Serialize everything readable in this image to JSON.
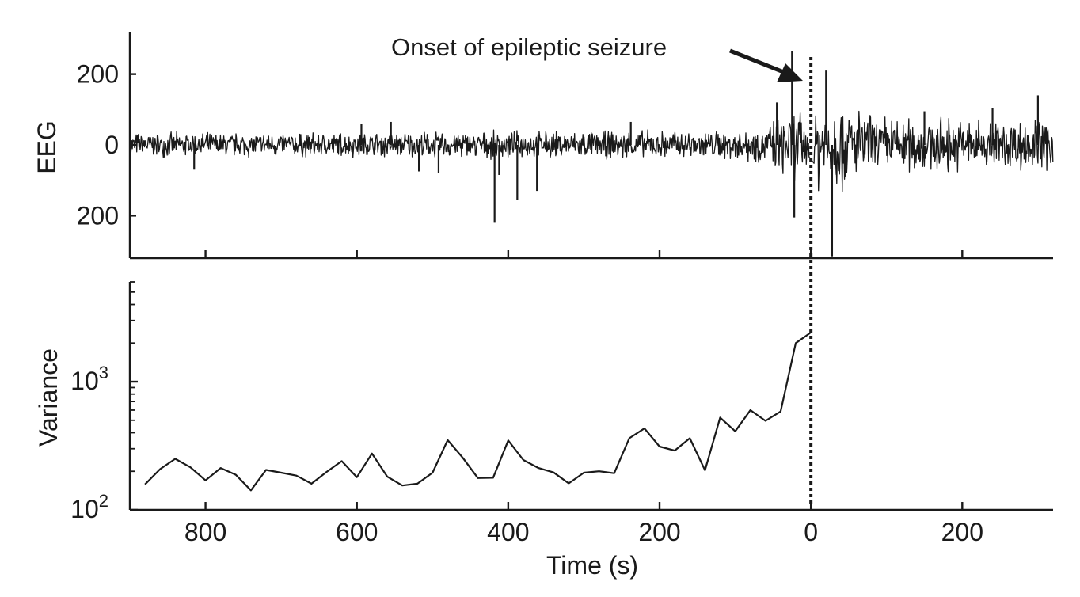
{
  "annotation": "Onset of epileptic seizure",
  "xlabel": "Time (s)",
  "chart_data": [
    {
      "type": "line",
      "ylabel": "EEG",
      "xlim": [
        -900,
        320
      ],
      "ylim": [
        -320,
        320
      ],
      "yticks": [
        {
          "value": 200,
          "label": "200"
        },
        {
          "value": 0,
          "label": "0"
        },
        {
          "value": -200,
          "label": "200"
        }
      ],
      "series_note_free": true,
      "spikes": [
        {
          "x": -815,
          "y": -70
        },
        {
          "x": -594,
          "y": 60
        },
        {
          "x": -555,
          "y": 65
        },
        {
          "x": -518,
          "y": -75
        },
        {
          "x": -492,
          "y": -80
        },
        {
          "x": -418,
          "y": -220
        },
        {
          "x": -412,
          "y": -85
        },
        {
          "x": -388,
          "y": -155
        },
        {
          "x": -362,
          "y": -130
        },
        {
          "x": -238,
          "y": 65
        },
        {
          "x": -45,
          "y": 120
        },
        {
          "x": -25,
          "y": 265
        },
        {
          "x": -22,
          "y": -205
        },
        {
          "x": 28,
          "y": -315
        },
        {
          "x": 20,
          "y": 210
        },
        {
          "x": 150,
          "y": 95
        },
        {
          "x": 240,
          "y": 105
        },
        {
          "x": 300,
          "y": 140
        }
      ],
      "envelope": [
        {
          "x": -900,
          "amp": 38
        },
        {
          "x": -600,
          "amp": 40
        },
        {
          "x": -300,
          "amp": 44
        },
        {
          "x": -120,
          "amp": 48
        },
        {
          "x": -60,
          "amp": 60
        },
        {
          "x": -35,
          "amp": 100
        },
        {
          "x": -15,
          "amp": 110
        },
        {
          "x": 0,
          "amp": 60
        },
        {
          "x": 10,
          "amp": 150
        },
        {
          "x": 35,
          "amp": 150
        },
        {
          "x": 80,
          "amp": 95
        },
        {
          "x": 200,
          "amp": 85
        },
        {
          "x": 320,
          "amp": 85
        }
      ]
    },
    {
      "type": "line",
      "ylabel": "Variance",
      "yscale": "log",
      "xlim": [
        -900,
        320
      ],
      "ylim": [
        100,
        6000
      ],
      "yticks": [
        {
          "value": 100,
          "base": "10",
          "exp": "2"
        },
        {
          "value": 1000,
          "base": "10",
          "exp": "3"
        }
      ],
      "xticks": [
        {
          "value": -800,
          "label": "800"
        },
        {
          "value": -600,
          "label": "600"
        },
        {
          "value": -400,
          "label": "400"
        },
        {
          "value": -200,
          "label": "200"
        },
        {
          "value": 0,
          "label": "0"
        },
        {
          "value": 200,
          "label": "200"
        }
      ],
      "x": [
        -880,
        -860,
        -840,
        -820,
        -800,
        -780,
        -760,
        -740,
        -720,
        -700,
        -680,
        -660,
        -640,
        -620,
        -600,
        -580,
        -560,
        -540,
        -520,
        -500,
        -480,
        -460,
        -440,
        -420,
        -400,
        -380,
        -360,
        -340,
        -320,
        -300,
        -280,
        -260,
        -240,
        -220,
        -200,
        -180,
        -160,
        -140,
        -120,
        -100,
        -80,
        -60,
        -40,
        -20,
        -1
      ],
      "y": [
        158,
        208,
        250,
        215,
        170,
        212,
        188,
        142,
        205,
        195,
        185,
        160,
        198,
        240,
        180,
        275,
        182,
        155,
        160,
        195,
        350,
        255,
        177,
        178,
        348,
        245,
        212,
        196,
        161,
        195,
        200,
        193,
        362,
        432,
        312,
        290,
        362,
        204,
        525,
        410,
        600,
        495,
        585,
        2000,
        2400
      ]
    }
  ]
}
